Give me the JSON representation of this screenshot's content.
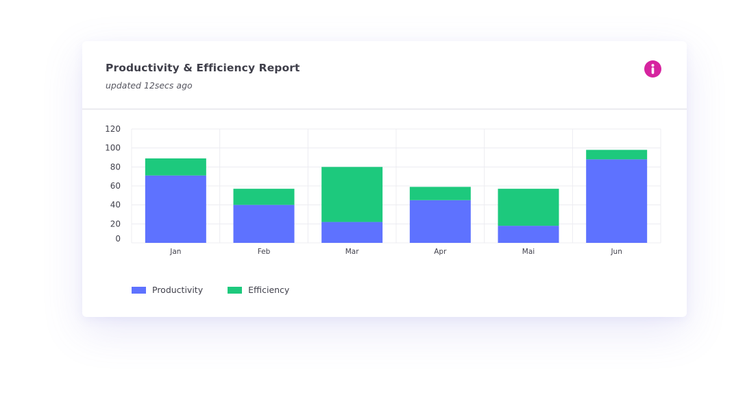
{
  "card": {
    "title": "Productivity & Efficiency Report",
    "subtitle": "updated 12secs ago",
    "info_icon": "info-icon"
  },
  "chart_data": {
    "type": "bar",
    "stacked": true,
    "categories": [
      "Jan",
      "Feb",
      "Mar",
      "Apr",
      "Mai",
      "Jun"
    ],
    "series": [
      {
        "name": "Productivity",
        "color": "#5e72ff",
        "values": [
          71,
          40,
          22,
          45,
          18,
          88
        ]
      },
      {
        "name": "Efficiency",
        "color": "#1dc97d",
        "values": [
          18,
          17,
          58,
          14,
          39,
          10
        ]
      }
    ],
    "y_ticks": [
      0,
      20,
      40,
      60,
      80,
      100,
      120
    ],
    "ylim": [
      0,
      120
    ],
    "grid": true,
    "legend_position": "bottom-left"
  }
}
